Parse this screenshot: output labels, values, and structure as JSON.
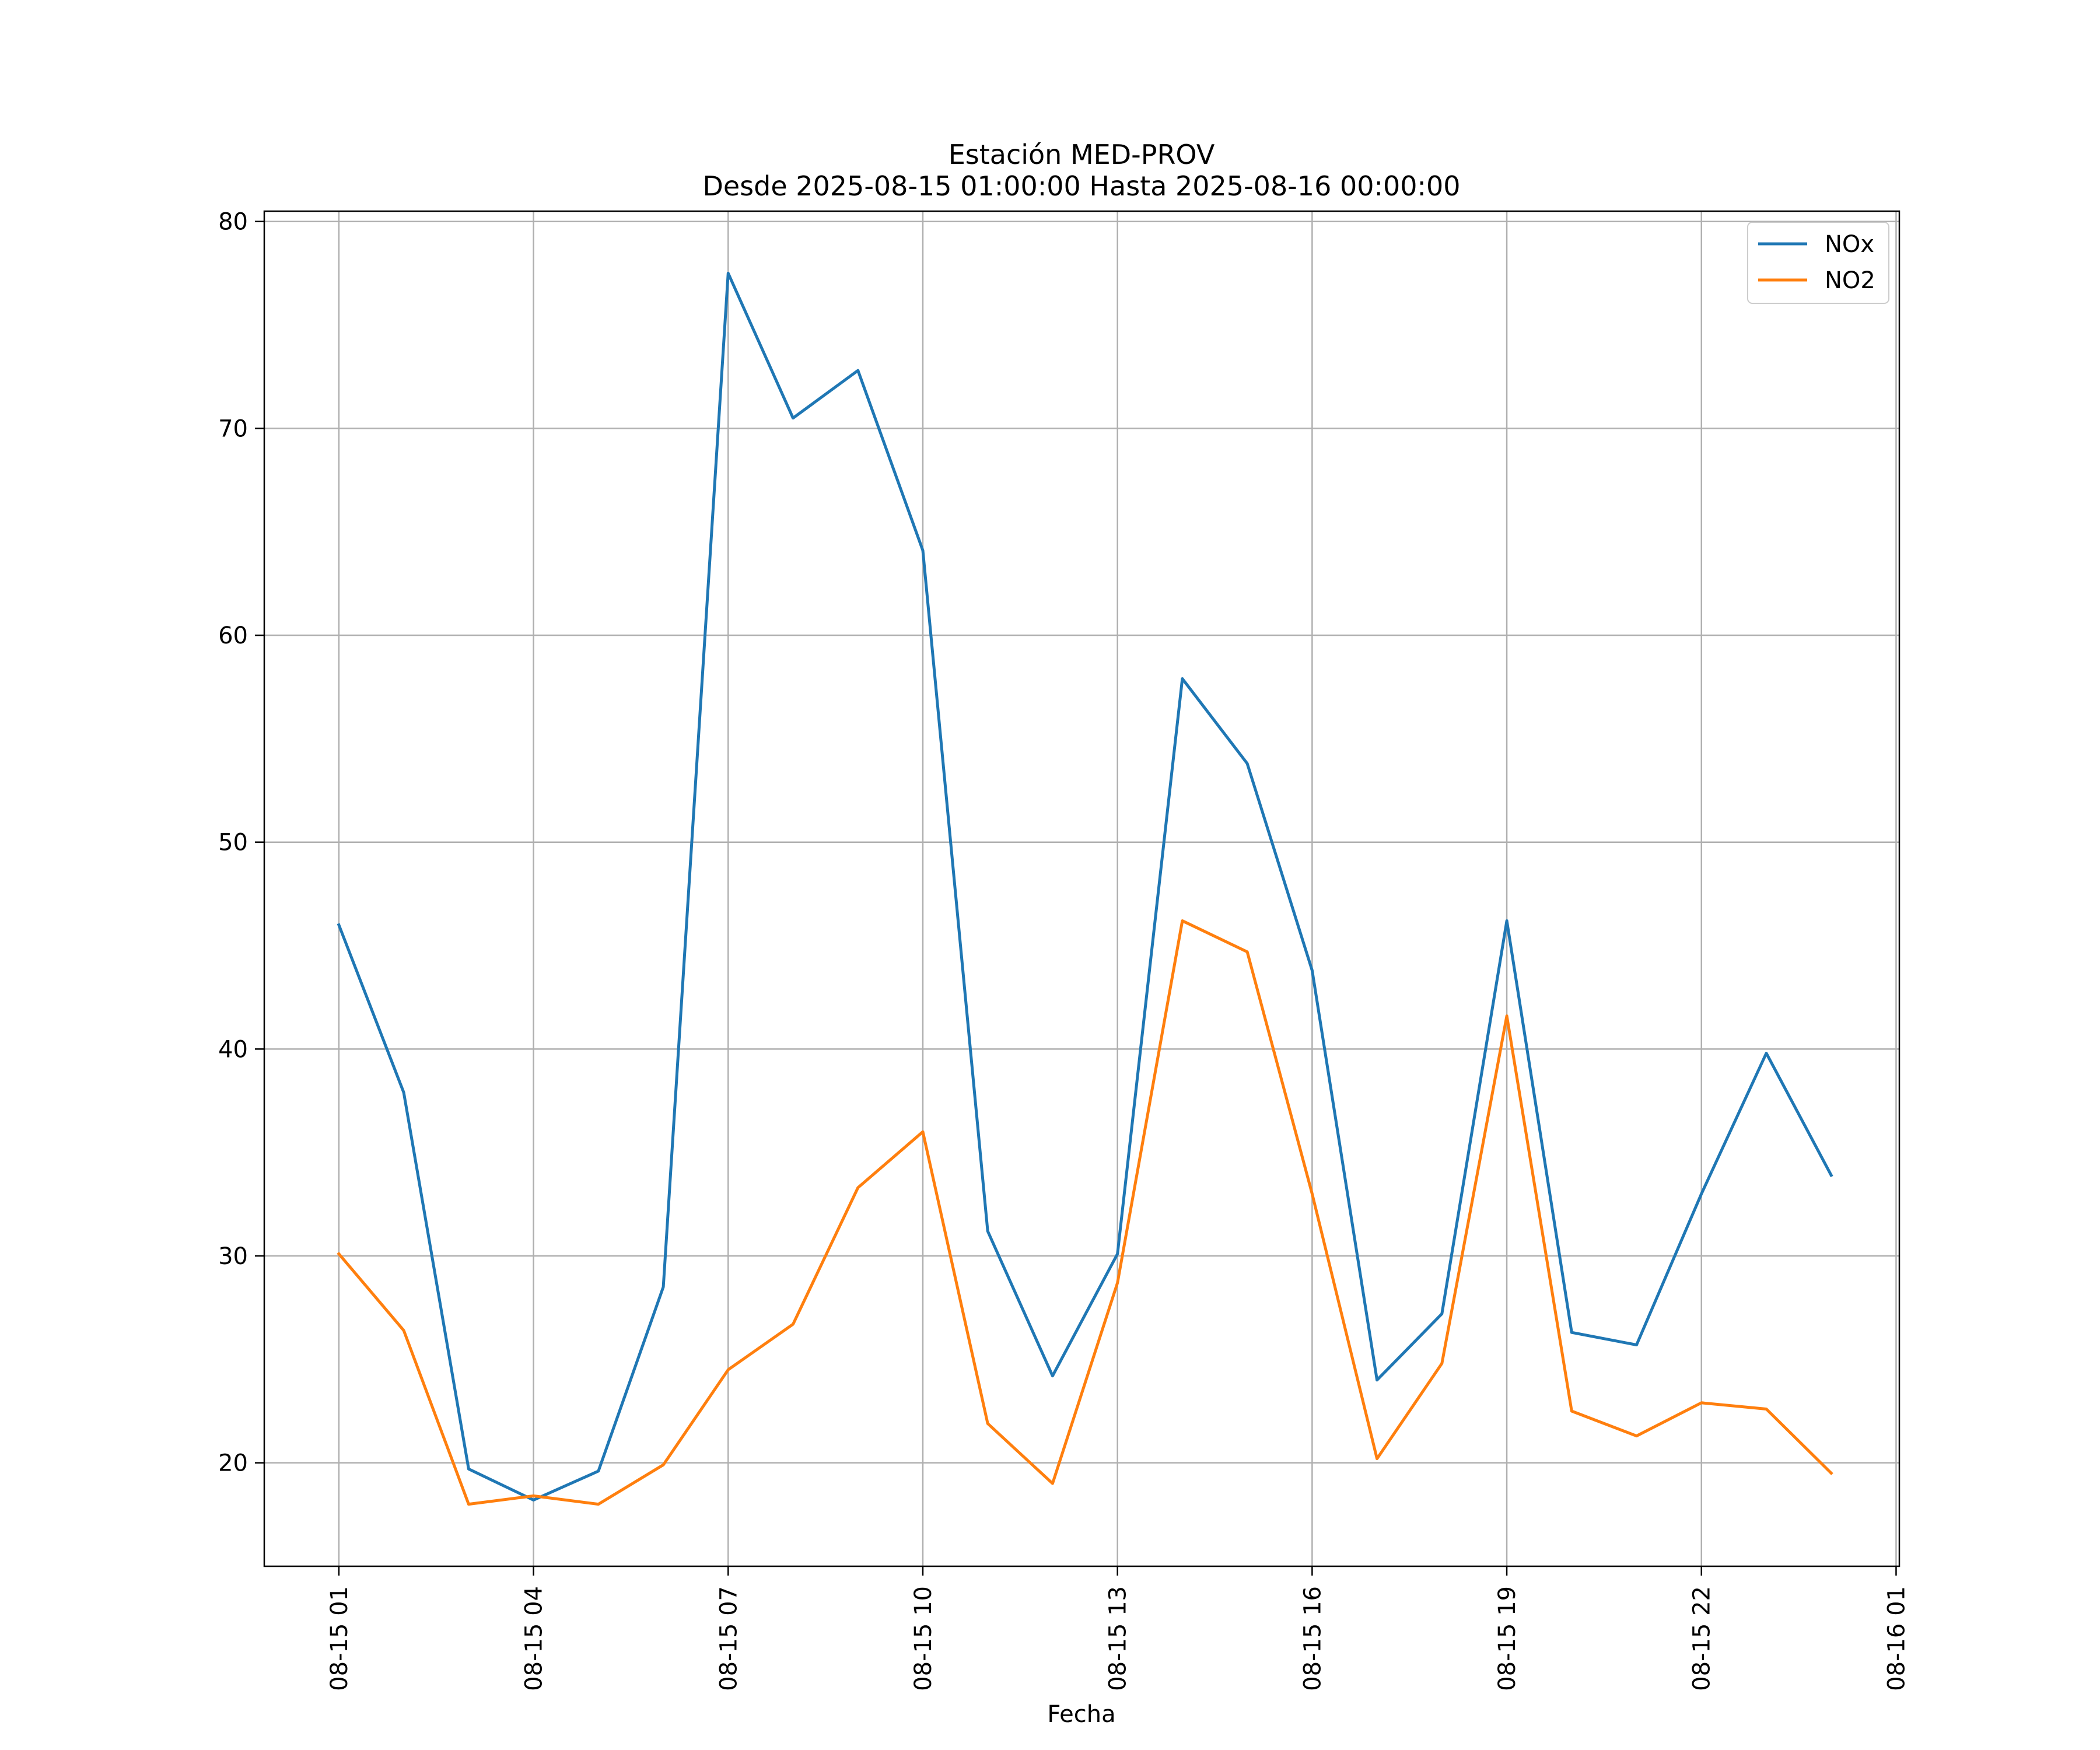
{
  "chart_data": {
    "type": "line",
    "title": "Estación MED-PROV",
    "subtitle": "Desde 2025-08-15 01:00:00 Hasta 2025-08-16 00:00:00",
    "xlabel": "Fecha",
    "ylabel": "",
    "x_hours": [
      1,
      2,
      3,
      4,
      5,
      6,
      7,
      8,
      9,
      10,
      11,
      12,
      13,
      14,
      15,
      16,
      17,
      18,
      19,
      20,
      21,
      22,
      23,
      24
    ],
    "xlim": [
      -0.15,
      25.05
    ],
    "ylim": [
      15,
      80.5
    ],
    "x_ticks": [
      {
        "hour": 1,
        "label": "08-15 01"
      },
      {
        "hour": 4,
        "label": "08-15 04"
      },
      {
        "hour": 7,
        "label": "08-15 07"
      },
      {
        "hour": 10,
        "label": "08-15 10"
      },
      {
        "hour": 13,
        "label": "08-15 13"
      },
      {
        "hour": 16,
        "label": "08-15 16"
      },
      {
        "hour": 19,
        "label": "08-15 19"
      },
      {
        "hour": 22,
        "label": "08-15 22"
      },
      {
        "hour": 25,
        "label": "08-16 01"
      }
    ],
    "y_ticks": [
      {
        "value": 20,
        "label": "20"
      },
      {
        "value": 30,
        "label": "30"
      },
      {
        "value": 40,
        "label": "40"
      },
      {
        "value": 50,
        "label": "50"
      },
      {
        "value": 60,
        "label": "60"
      },
      {
        "value": 70,
        "label": "70"
      },
      {
        "value": 80,
        "label": "80"
      }
    ],
    "grid": true,
    "legend_position": "top-right",
    "series": [
      {
        "name": "NOx",
        "color": "#1f77b4",
        "values": [
          46.0,
          37.9,
          19.7,
          18.2,
          19.6,
          28.5,
          77.5,
          70.5,
          72.8,
          64.1,
          31.2,
          24.2,
          30.1,
          57.9,
          53.8,
          43.8,
          24.0,
          27.2,
          46.2,
          26.3,
          25.7,
          33.0,
          39.8,
          33.9
        ]
      },
      {
        "name": "NO2",
        "color": "#ff7f0e",
        "values": [
          30.1,
          26.4,
          18.0,
          18.4,
          18.0,
          19.9,
          24.5,
          26.7,
          33.3,
          36.0,
          21.9,
          19.0,
          28.7,
          46.2,
          44.7,
          33.0,
          20.2,
          24.8,
          41.6,
          22.5,
          21.3,
          22.9,
          22.6,
          19.5
        ]
      }
    ]
  }
}
